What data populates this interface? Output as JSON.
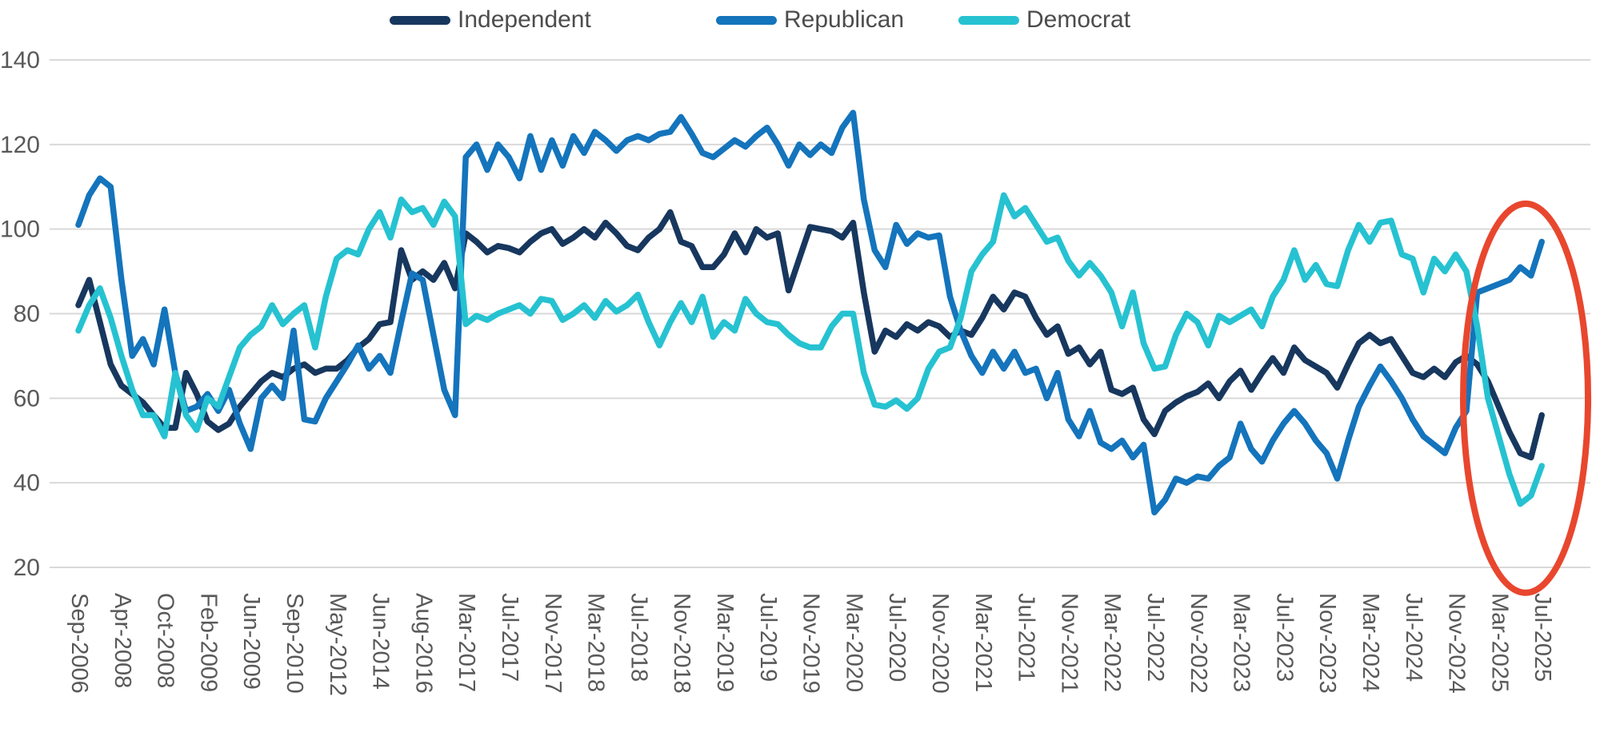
{
  "chart_data": {
    "type": "line",
    "title": "",
    "xlabel": "",
    "ylabel": "",
    "grid": "horizontal",
    "legend_position": "top",
    "y_axis": {
      "min": 20,
      "max": 140,
      "ticks": [
        140,
        120,
        100,
        80,
        60,
        40,
        20
      ]
    },
    "x_axis": {
      "points_per_tick": 4,
      "tick_labels": [
        "Sep-2006",
        "Apr-2008",
        "Oct-2008",
        "Feb-2009",
        "Jun-2009",
        "Sep-2010",
        "May-2012",
        "Jun-2014",
        "Aug-2016",
        "Mar-2017",
        "Jul-2017",
        "Nov-2017",
        "Mar-2018",
        "Jul-2018",
        "Nov-2018",
        "Mar-2019",
        "Jul-2019",
        "Nov-2019",
        "Mar-2020",
        "Jul-2020",
        "Nov-2020",
        "Mar-2021",
        "Jul-2021",
        "Nov-2021",
        "Mar-2022",
        "Jul-2022",
        "Nov-2022",
        "Mar-2023",
        "Jul-2023",
        "Nov-2023",
        "Mar-2024",
        "Jul-2024",
        "Nov-2024",
        "Mar-2025",
        "Jul-2025"
      ]
    },
    "series": [
      {
        "name": "Independent",
        "color": "#17375e",
        "values": [
          82,
          88,
          78,
          68,
          63,
          61,
          59,
          56,
          53,
          53,
          66,
          61,
          54.5,
          52.5,
          54,
          58,
          61,
          64,
          66,
          65,
          67,
          68,
          66,
          67,
          67,
          69,
          72,
          74,
          77.5,
          78,
          95,
          88,
          90,
          88,
          92,
          86,
          99,
          97,
          94.5,
          96,
          95.5,
          94.5,
          97,
          99,
          100,
          96.5,
          98,
          100,
          98,
          101.5,
          99,
          96,
          95,
          98,
          100,
          104,
          97,
          96,
          91,
          91,
          94,
          99,
          94.5,
          100,
          98,
          99,
          85.5,
          93,
          100.5,
          100,
          99.5,
          98,
          101.5,
          85,
          71,
          76,
          74.5,
          77.5,
          76,
          78,
          77,
          74.5,
          76,
          75,
          79,
          84,
          81,
          85,
          84,
          79,
          75,
          77,
          70.5,
          72,
          68,
          71,
          62,
          61,
          62.5,
          55,
          51.5,
          57,
          59,
          60.5,
          61.5,
          63.5,
          60,
          64,
          66.5,
          62,
          66,
          69.5,
          66,
          72,
          69,
          67.5,
          66,
          62.5,
          68,
          73,
          75,
          73,
          74,
          70,
          66,
          65,
          67,
          65,
          68.5,
          70,
          68,
          64,
          58,
          52,
          47,
          46,
          56
        ]
      },
      {
        "name": "Republican",
        "color": "#1474bc",
        "values": [
          101,
          108,
          112,
          110,
          88,
          70,
          74,
          68,
          81,
          66,
          57,
          58,
          61,
          57,
          62,
          54,
          48,
          60,
          63,
          60,
          76,
          55,
          54.5,
          60,
          64,
          68,
          72.5,
          67,
          70,
          66,
          78,
          89.5,
          88,
          75,
          62,
          56,
          117,
          120,
          114,
          120,
          117,
          112,
          122,
          114,
          121,
          115,
          122,
          118,
          123,
          121,
          118.5,
          121,
          122,
          121,
          122.5,
          123,
          126.5,
          122.5,
          118,
          117,
          119,
          121,
          119.5,
          122,
          124,
          120,
          115,
          120,
          117.5,
          120,
          118,
          124,
          127.5,
          107,
          95,
          91,
          101,
          96.5,
          99,
          98,
          98.5,
          84,
          76,
          70,
          66,
          71,
          67,
          71,
          66,
          67,
          60,
          66,
          55,
          51,
          57,
          49.5,
          48,
          50,
          46,
          49,
          33,
          36,
          41,
          40,
          41.5,
          41,
          44,
          46,
          54,
          48,
          45,
          50,
          54,
          57,
          54,
          50,
          47,
          41,
          50,
          58,
          63,
          67.5,
          64,
          60,
          55,
          51,
          49,
          47,
          53,
          57,
          85,
          86,
          87,
          88,
          91,
          89,
          97
        ]
      },
      {
        "name": "Democrat",
        "color": "#26c2d1",
        "values": [
          76,
          82,
          86,
          79,
          70,
          62,
          56,
          56,
          51,
          66,
          56,
          52.5,
          60,
          58,
          65,
          72,
          75,
          77,
          82,
          77.5,
          80,
          82,
          72,
          84,
          93,
          95,
          94,
          100,
          104,
          98,
          107,
          104,
          105,
          101,
          106.5,
          103,
          77.5,
          79.5,
          78.5,
          80,
          81,
          82,
          80,
          83.5,
          83,
          78.5,
          80,
          82,
          79,
          83,
          80.5,
          82,
          84.5,
          78,
          72.5,
          78,
          82.5,
          78,
          84,
          74.5,
          78,
          76,
          83.5,
          80,
          78,
          77.5,
          75,
          73,
          72,
          72,
          77,
          80,
          80,
          66,
          58.5,
          58,
          59.5,
          57.5,
          60,
          67,
          71,
          72,
          79,
          90,
          94,
          97,
          108,
          103,
          105,
          101,
          97,
          98,
          92.5,
          89,
          92,
          89,
          85,
          77,
          85,
          73,
          67,
          67.5,
          75,
          80,
          78,
          72.5,
          79.5,
          78,
          79.5,
          81,
          77,
          84,
          88,
          95,
          88,
          91.5,
          87,
          86.5,
          95,
          101,
          97,
          101.5,
          102,
          94,
          93,
          85,
          93,
          90,
          94,
          90,
          77,
          60,
          51,
          42,
          35,
          37,
          44
        ]
      }
    ],
    "annotation": {
      "shape": "ellipse",
      "purpose": "highlight of post-Nov-2024 partisan flip (Mar-2025 to Jul-2025)",
      "color": "#e8472e",
      "stroke_width": 8,
      "x_center_index": 134.5,
      "y_center_value": 60,
      "x_radius_points": 5.8,
      "y_radius_values": 46
    }
  }
}
